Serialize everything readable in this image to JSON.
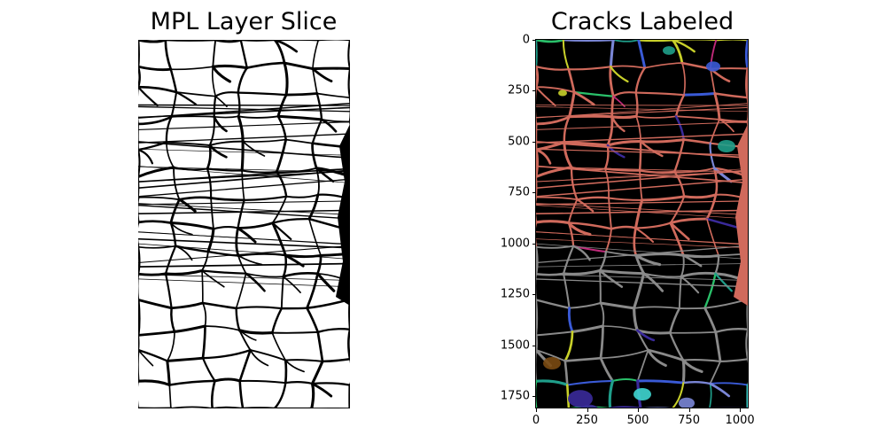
{
  "left_panel": {
    "title": "MPL Layer Slice",
    "bg_color": "#ffffff",
    "crack_color": "#000000"
  },
  "right_panel": {
    "title": "Cracks Labeled",
    "bg_color": "#000000",
    "y_ticks": [
      "0",
      "250",
      "500",
      "750",
      "1000",
      "1250",
      "1500",
      "1750"
    ],
    "x_ticks": [
      "0",
      "250",
      "500",
      "750",
      "1000"
    ],
    "label_colors": {
      "dominant_top": "#d06a5c",
      "dominant_bottom": "#8a8a8a",
      "teal": "#1f9e8a",
      "indigo": "#3a2a9a",
      "cyan": "#3fd6d0",
      "brown": "#7a4a12",
      "periwinkle": "#7a86d6",
      "magenta": "#c02a7a",
      "yellow": "#c8d02a",
      "green": "#2ac06a",
      "blue": "#3a5ad6"
    }
  }
}
